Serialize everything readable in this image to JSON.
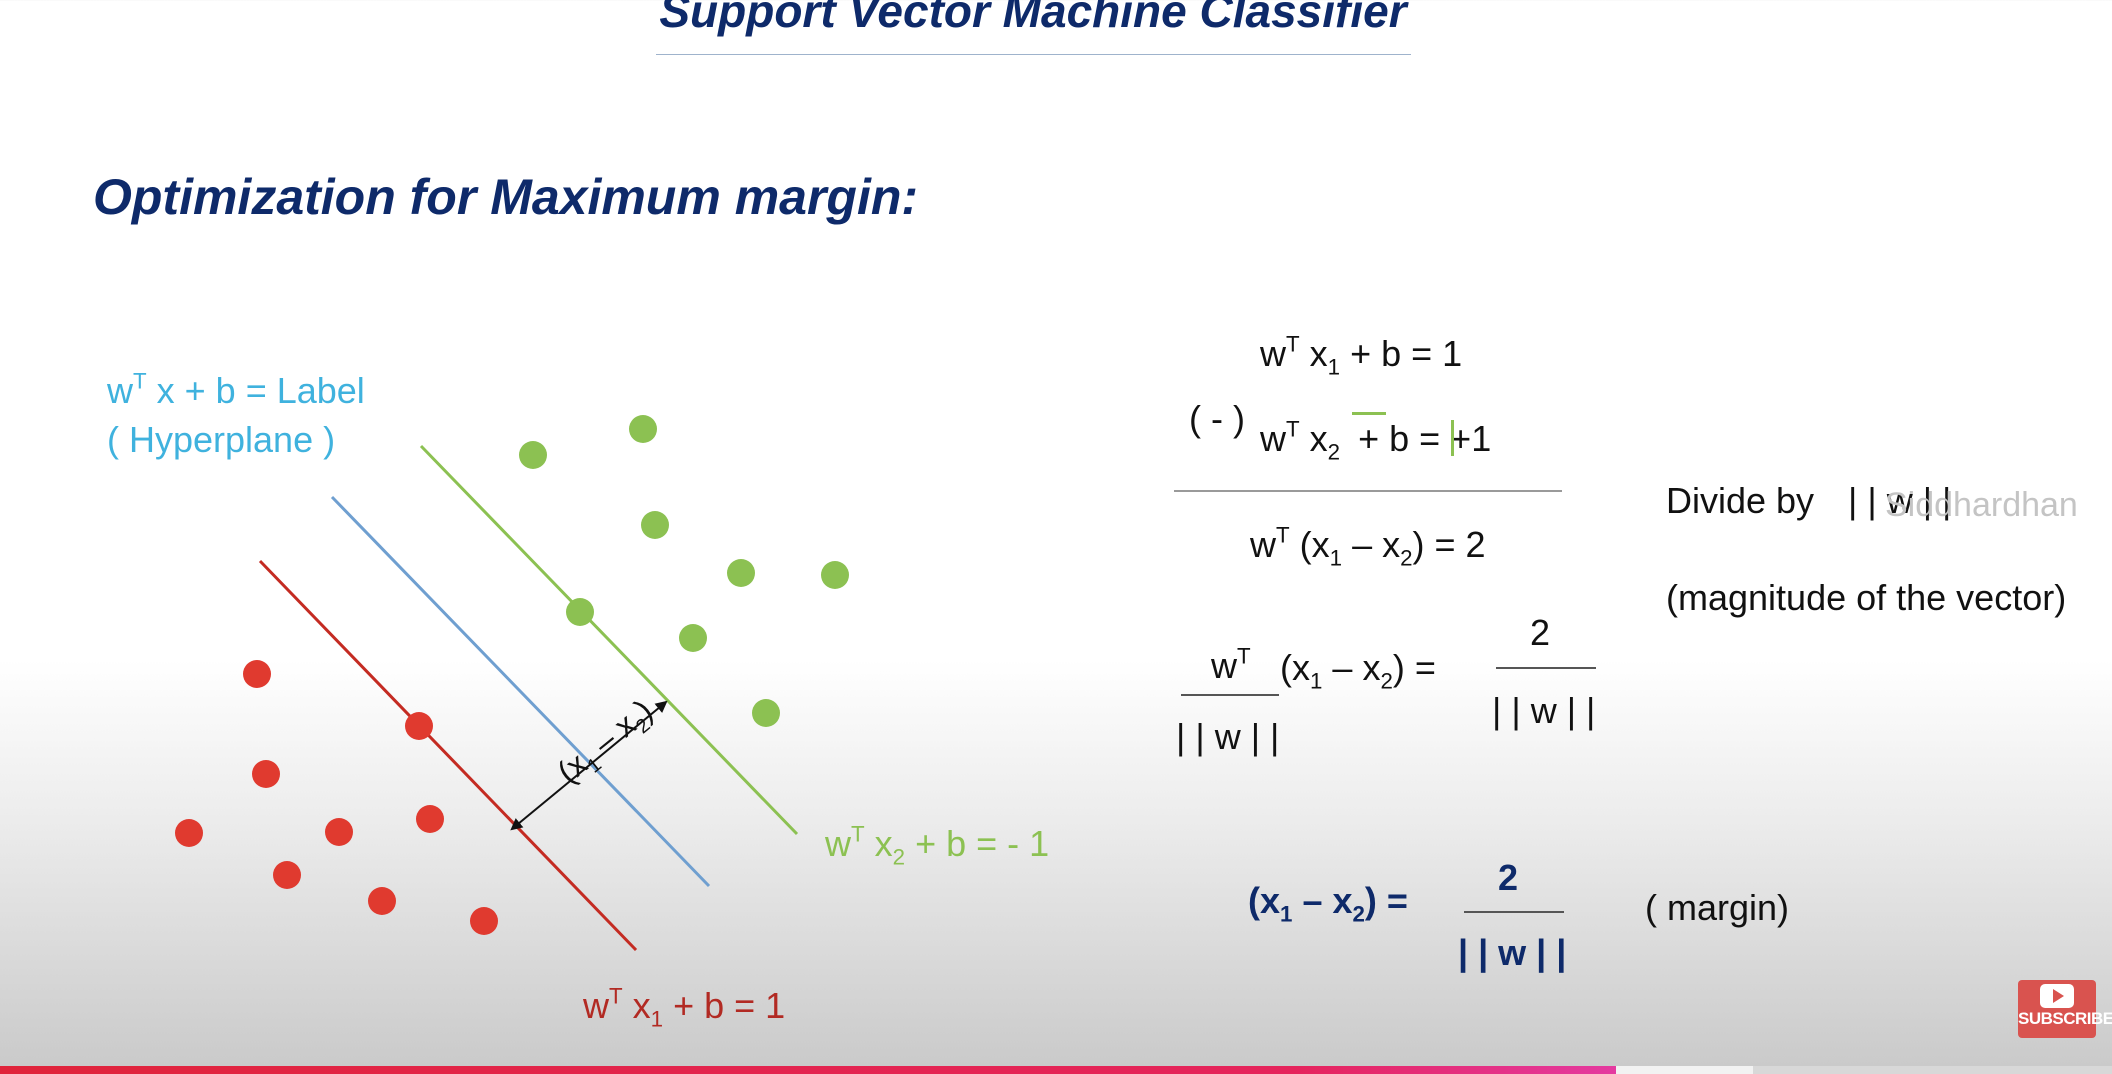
{
  "slide": {
    "title": "Support Vector Machine Classifier",
    "heading": "Optimization for Maximum margin:"
  },
  "diagram": {
    "hyperplane_eq": {
      "w": "w",
      "T": "T",
      "rest": " x  +  b  =  Label"
    },
    "hyperplane_label": "( Hyperplane )",
    "positive_eq": {
      "w": "w",
      "T": "T",
      "x": " x",
      "sub": "2",
      "rest": "  +  b  = - 1"
    },
    "negative_eq": {
      "w": "w",
      "T": "T",
      "x": " x",
      "sub": "1",
      "rest": "  +  b  =  1"
    },
    "margin_label": {
      "open": "(x",
      "s1": "1",
      "mid": " – x",
      "s2": "2",
      "close": ")"
    },
    "colors": {
      "hyperplane": "#6f9fd0",
      "positive": "#8cc152",
      "negative": "#c42b22",
      "arrow": "#111111"
    }
  },
  "derivation": {
    "eq1": {
      "w": "w",
      "T": "T",
      "x": " x",
      "sub": "1",
      "rest": "  +  b  =  1"
    },
    "minus": "( - )",
    "eq2": {
      "w": "w",
      "T": "T",
      "x": " x",
      "sub": "2",
      "plus": "+",
      "b_eq": " b  = ",
      "sign": "+",
      "one": "1"
    },
    "result": {
      "w": "w",
      "T": "T",
      "a": " (x",
      "s1": "1",
      "b": " – x",
      "s2": "2",
      "c": ")  =  2"
    },
    "divide_by": "Divide by",
    "norm": "| | w | |",
    "watermark": "Siddhardhan",
    "magnitude_note": "(magnitude of the vector)",
    "fraction": {
      "num_w": "w",
      "num_T": "T",
      "den": "| | w | |",
      "mid_a": "(x",
      "s1": "1",
      "mid_b": " – x",
      "s2": "2",
      "mid_c": ")  =",
      "rhs_num": "2",
      "rhs_den": "| | w | |"
    },
    "final": {
      "a": "(x",
      "s1": "1",
      "b": " – x",
      "s2": "2",
      "c": ")  =",
      "num": "2",
      "den": "| | w | |",
      "note": "( margin)"
    }
  },
  "player": {
    "subscribe_label": "SUBSCRIBE",
    "progress": 0.765,
    "buffered": 0.83
  }
}
